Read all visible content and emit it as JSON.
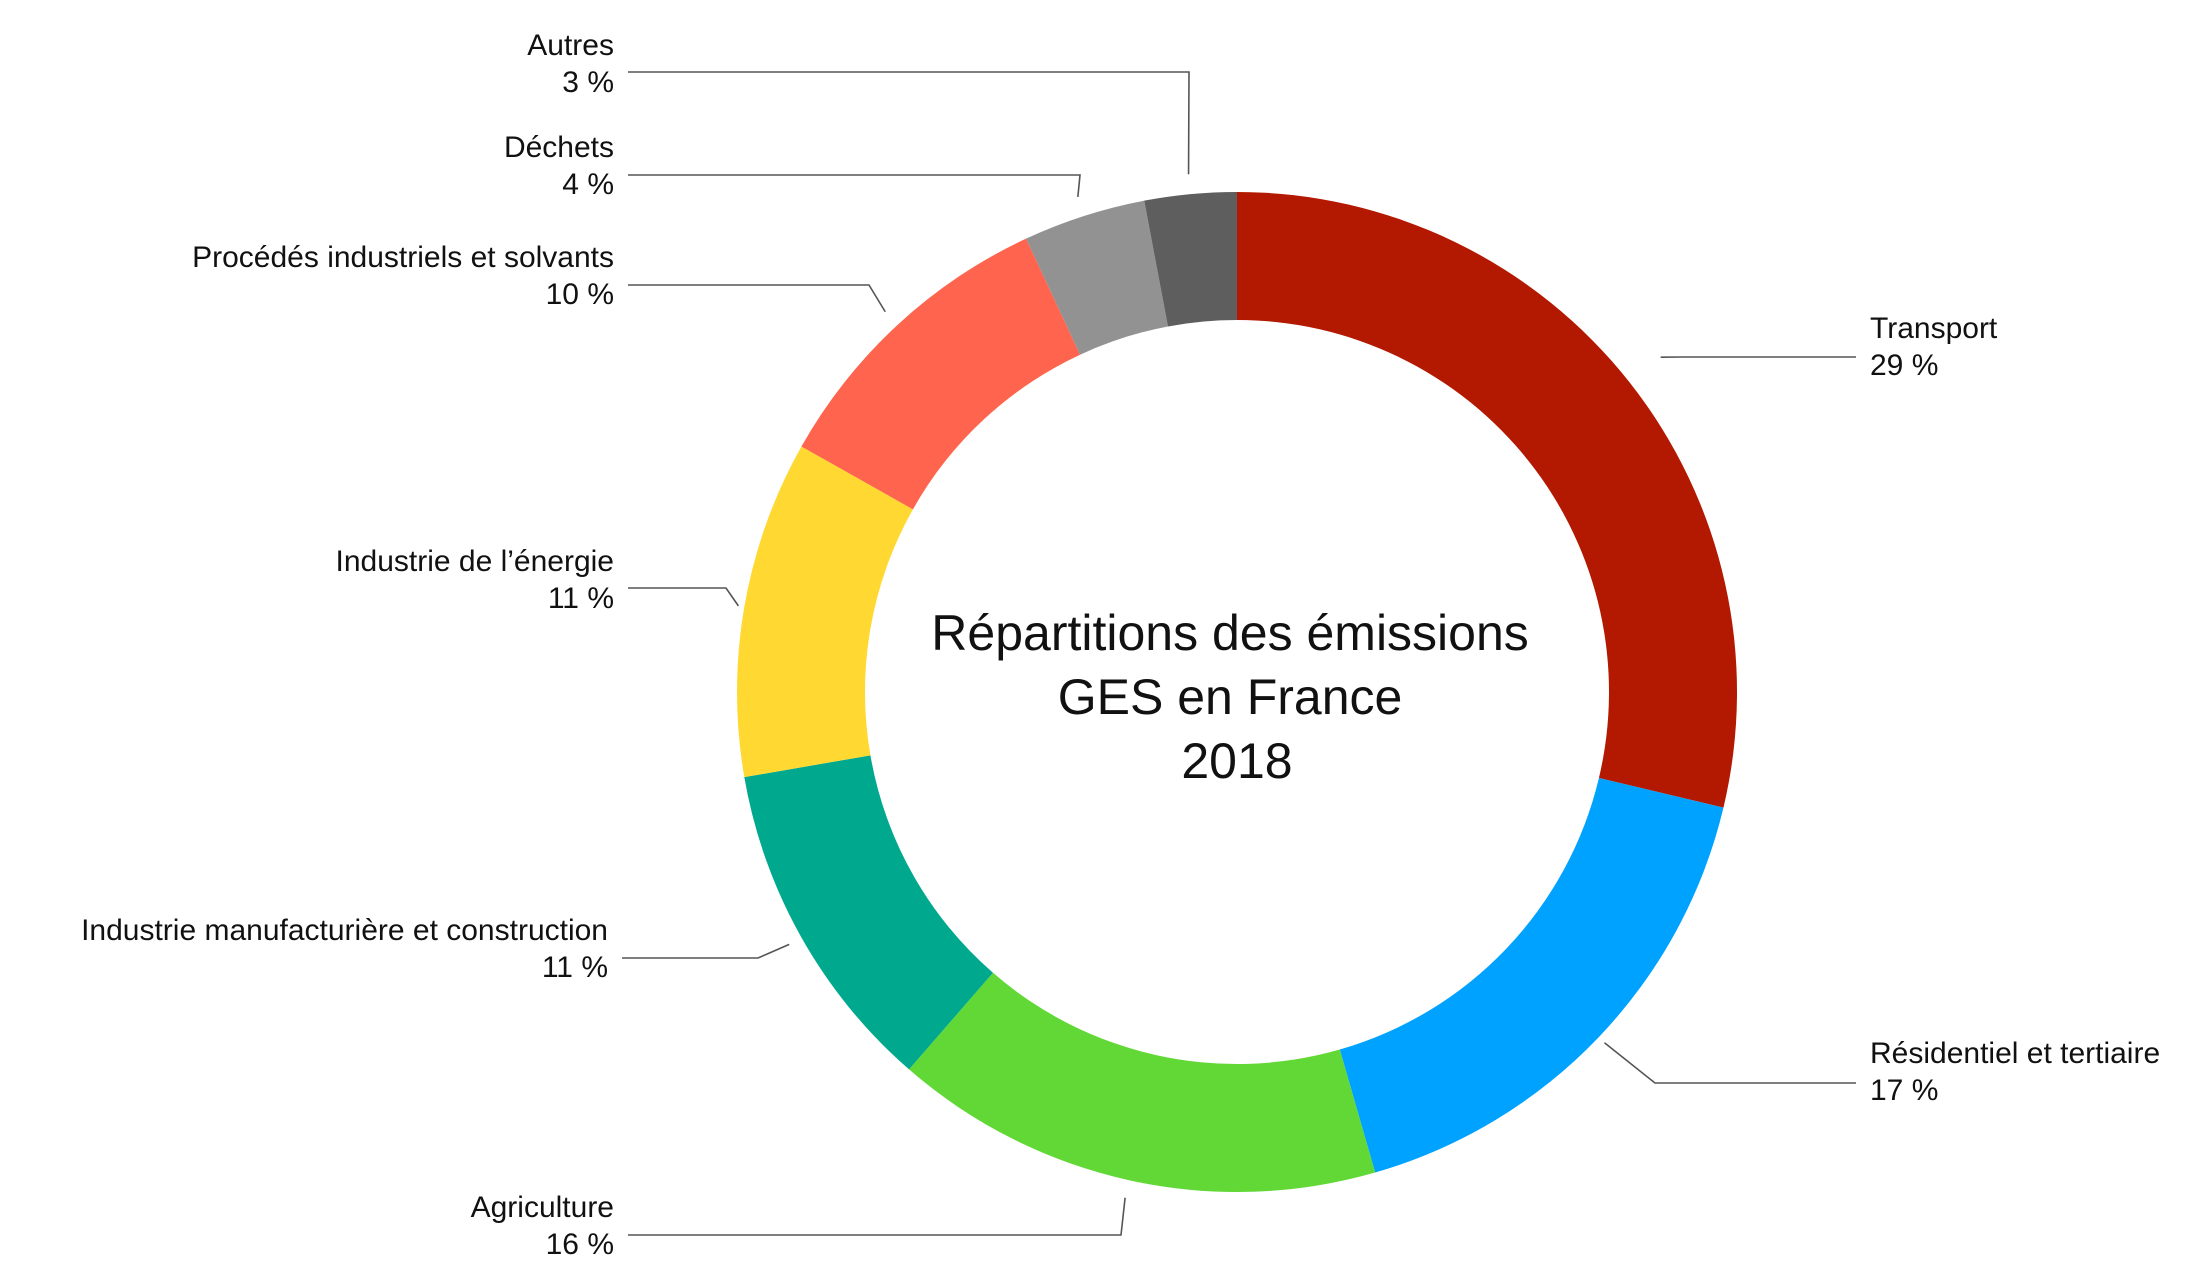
{
  "chart_data": {
    "type": "donut",
    "title_lines": [
      "Répartitions des émissions",
      "GES en France",
      "2018"
    ],
    "slices": [
      {
        "label": "Transport",
        "value": 29,
        "value_label": "29 %",
        "color": "#B31800"
      },
      {
        "label": "Résidentiel et tertiaire",
        "value": 17,
        "value_label": "17 %",
        "color": "#00A2FF"
      },
      {
        "label": "Agriculture",
        "value": 16,
        "value_label": "16 %",
        "color": "#61D836"
      },
      {
        "label": "Industrie manufacturière et construction",
        "value": 11,
        "value_label": "11 %",
        "color": "#00A98E"
      },
      {
        "label": "Industrie de l’énergie",
        "value": 11,
        "value_label": "11 %",
        "color": "#FFD932"
      },
      {
        "label": "Procédés industriels et solvants",
        "value": 10,
        "value_label": "10 %",
        "color": "#FF644E"
      },
      {
        "label": "Déchets",
        "value": 4,
        "value_label": "4 %",
        "color": "#929292"
      },
      {
        "label": "Autres",
        "value": 3,
        "value_label": "3 %",
        "color": "#5E5E5E"
      }
    ],
    "start_angle": "12 o'clock",
    "direction": "clockwise",
    "legend": "none (callout labels with leader lines)"
  }
}
